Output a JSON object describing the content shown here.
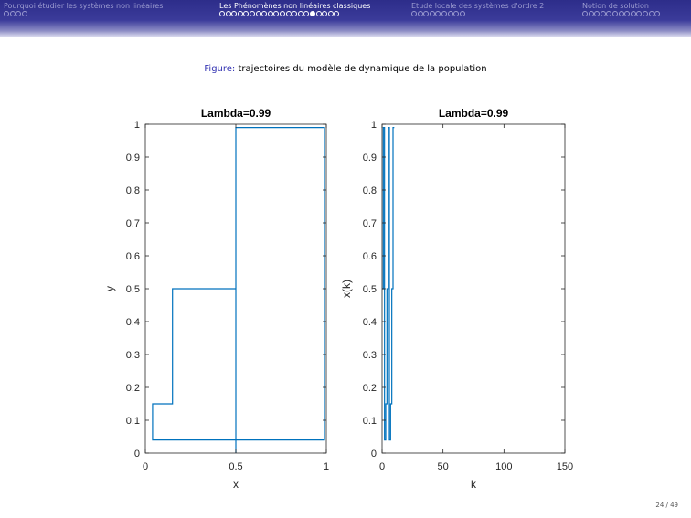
{
  "header": {
    "sections": [
      {
        "label": "Pourquoi étudier les systèmes non linéaires",
        "dots": 4,
        "current": -1,
        "active": false
      },
      {
        "label": "Les Phénomènes non linéaires classiques",
        "dots": 20,
        "current": 15,
        "active": true
      },
      {
        "label": "Etude locale des systèmes d'ordre 2",
        "dots": 9,
        "current": -1,
        "active": false
      },
      {
        "label": "Notion de solution",
        "dots": 13,
        "current": -1,
        "active": false
      }
    ]
  },
  "caption": {
    "label": "Figure:",
    "text": "trajectoires du modèle de dynamique de la population"
  },
  "page_number": "24 / 49",
  "colors": {
    "line": "#0072bd",
    "header_bg": "#3b3b9a",
    "caption_label": "#3333b2"
  },
  "chart_data": [
    {
      "type": "line",
      "title": "Lambda=0.99",
      "xlabel": "x",
      "ylabel": "y",
      "xlim": [
        0,
        1
      ],
      "ylim": [
        0,
        1
      ],
      "xticks": [
        "0",
        "0.5",
        "1"
      ],
      "yticks": [
        "0",
        "0.1",
        "0.2",
        "0.3",
        "0.4",
        "0.5",
        "0.6",
        "0.7",
        "0.8",
        "0.9",
        "1"
      ],
      "grid": false,
      "series": [
        {
          "style": "staircase cobweb",
          "points": [
            [
              0.5,
              0.0
            ],
            [
              0.5,
              0.99
            ],
            [
              0.99,
              0.99
            ],
            [
              0.99,
              0.04
            ],
            [
              0.04,
              0.04
            ],
            [
              0.04,
              0.15
            ],
            [
              0.15,
              0.15
            ],
            [
              0.15,
              0.5
            ],
            [
              0.5,
              0.5
            ],
            [
              0.5,
              0.99
            ],
            [
              0.99,
              0.99
            ],
            [
              0.99,
              0.04
            ],
            [
              0.04,
              0.04
            ],
            [
              0.04,
              0.15
            ],
            [
              0.15,
              0.15
            ],
            [
              0.15,
              0.5
            ],
            [
              0.5,
              0.5
            ]
          ]
        }
      ]
    },
    {
      "type": "line",
      "title": "Lambda=0.99",
      "xlabel": "k",
      "ylabel": "x(k)",
      "xlim": [
        0,
        150
      ],
      "ylim": [
        0,
        1
      ],
      "xticks": [
        "0",
        "50",
        "100",
        "150"
      ],
      "yticks": [
        "0",
        "0.1",
        "0.2",
        "0.3",
        "0.4",
        "0.5",
        "0.6",
        "0.7",
        "0.8",
        "0.9",
        "1"
      ],
      "grid": false,
      "series": [
        {
          "style": "stairs",
          "x_start": 0,
          "values": [
            0.5,
            0.99,
            0.04,
            0.15,
            0.5,
            0.99,
            0.04,
            0.15,
            0.5,
            0.99
          ]
        }
      ]
    }
  ]
}
